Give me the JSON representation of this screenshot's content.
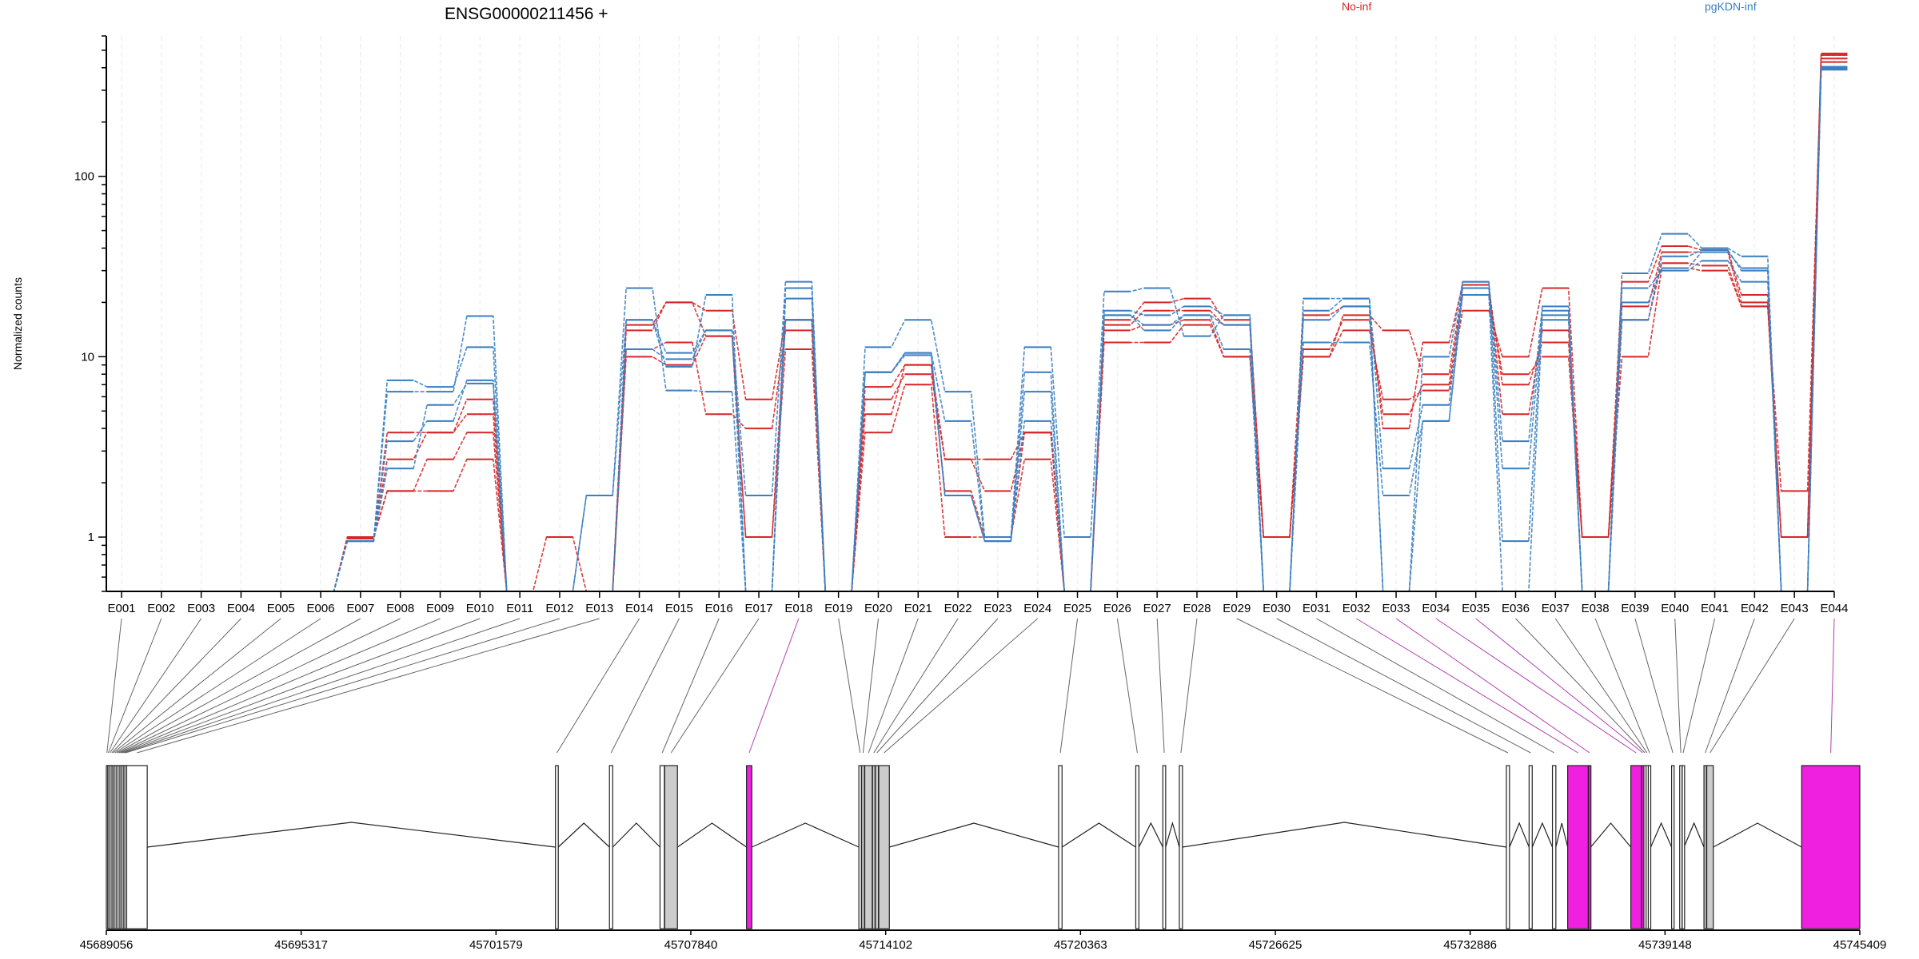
{
  "colors": {
    "No-inf": "#d62728",
    "pgKDN-inf": "#3a7fc1",
    "significant": "#f020e0",
    "grey_exon": "#cccccc",
    "axis": "#000000"
  },
  "header": {
    "title": "ENSG00000211456 +",
    "legend": [
      "No-inf",
      "pgKDN-inf"
    ]
  },
  "chart_data": [
    {
      "type": "line",
      "title": "ENSG00000211456 +",
      "xlabel": "",
      "ylabel": "Normalized counts",
      "yscale": "log",
      "ylim": [
        0.5,
        600
      ],
      "yticks": [
        1,
        10,
        100
      ],
      "ytick_labels": [
        "1",
        "10",
        "100"
      ],
      "grid": "vertical dashed per exon",
      "legend_placement": "top",
      "categories": [
        "E001",
        "E002",
        "E003",
        "E004",
        "E005",
        "E006",
        "E007",
        "E008",
        "E009",
        "E010",
        "E011",
        "E012",
        "E013",
        "E014",
        "E015",
        "E016",
        "E017",
        "E018",
        "E019",
        "E020",
        "E021",
        "E022",
        "E023",
        "E024",
        "E025",
        "E026",
        "E027",
        "E028",
        "E029",
        "E030",
        "E031",
        "E032",
        "E033",
        "E034",
        "E035",
        "E036",
        "E037",
        "E038",
        "E039",
        "E040",
        "E041",
        "E042",
        "E043",
        "E044"
      ],
      "series": [
        {
          "group": "No-inf",
          "values": [
            0.5,
            0.5,
            0.5,
            0.5,
            0.5,
            0.5,
            1.0,
            1.8,
            1.8,
            2.7,
            0.5,
            1.0,
            0.5,
            10,
            9,
            13,
            1.0,
            11,
            0.5,
            3.8,
            7,
            1.0,
            1.0,
            2.7,
            0.5,
            12,
            12,
            15,
            10,
            1.0,
            10,
            14,
            5.8,
            6.5,
            18,
            10,
            24,
            1.0,
            10,
            31,
            30,
            19,
            1.8,
            450
          ]
        },
        {
          "group": "No-inf",
          "values": [
            0.5,
            0.5,
            0.5,
            0.5,
            0.5,
            0.5,
            1.0,
            1.8,
            2.7,
            3.8,
            0.5,
            0.5,
            0.5,
            11,
            12,
            4.8,
            4.0,
            14,
            0.5,
            5.8,
            8,
            2.7,
            1.8,
            3.8,
            0.5,
            14,
            15,
            16,
            10,
            1.0,
            11,
            16,
            4.8,
            7,
            22,
            8,
            10,
            1.0,
            16,
            33,
            32,
            19,
            1.0,
            430
          ]
        },
        {
          "group": "No-inf",
          "values": [
            0.5,
            0.5,
            0.5,
            0.5,
            0.5,
            0.5,
            0.98,
            2.7,
            3.8,
            4.8,
            0.5,
            0.5,
            0.5,
            14,
            20,
            18,
            5.8,
            16,
            0.5,
            6.8,
            9,
            2.7,
            2.7,
            3.8,
            0.5,
            15,
            18,
            18,
            15,
            1.0,
            10,
            17,
            14,
            8,
            24,
            7,
            12,
            1.0,
            19,
            38,
            38,
            20,
            1.0,
            470
          ]
        },
        {
          "group": "No-inf",
          "values": [
            0.5,
            0.5,
            0.5,
            0.5,
            0.5,
            0.5,
            0.98,
            3.8,
            3.8,
            5.8,
            0.5,
            0.5,
            0.5,
            15,
            20,
            13,
            1.0,
            16,
            0.5,
            4.8,
            9,
            1.8,
            1.0,
            3.8,
            0.5,
            16,
            20,
            21,
            16,
            1.0,
            17,
            19,
            4.0,
            12,
            25,
            4.8,
            14,
            1.0,
            26,
            41,
            39,
            22,
            1.0,
            480
          ]
        },
        {
          "group": "pgKDN-inf",
          "values": [
            0.5,
            0.5,
            0.5,
            0.5,
            0.5,
            0.5,
            0.95,
            2.4,
            5.4,
            7.1,
            0.5,
            0.5,
            1.7,
            24,
            6.5,
            6.4,
            0.5,
            24,
            0.5,
            11.3,
            16,
            6.4,
            1.0,
            11.3,
            1.0,
            23,
            24,
            13,
            17,
            0.5,
            21,
            21,
            2.4,
            5.4,
            26,
            3.4,
            19,
            0.5,
            29,
            48,
            40,
            36,
            0.5,
            400
          ]
        },
        {
          "group": "pgKDN-inf",
          "values": [
            0.5,
            0.5,
            0.5,
            0.5,
            0.5,
            0.5,
            0.95,
            6.4,
            6.4,
            16.8,
            0.5,
            0.5,
            1.7,
            16,
            10.5,
            14,
            0.5,
            21,
            0.5,
            8.2,
            10.5,
            4.4,
            0.95,
            6.4,
            0.5,
            17,
            14,
            17,
            11,
            0.5,
            12,
            12,
            1.7,
            4.4,
            24,
            2.4,
            17,
            0.5,
            24,
            30,
            34,
            26,
            0.5,
            390
          ]
        },
        {
          "group": "pgKDN-inf",
          "values": [
            0.5,
            0.5,
            0.5,
            0.5,
            0.5,
            0.5,
            0.95,
            7.4,
            6.8,
            11.3,
            0.5,
            0.5,
            0.5,
            11,
            9.7,
            14,
            1.7,
            26,
            0.5,
            8.2,
            10.5,
            1.7,
            0.95,
            4.4,
            0.5,
            18,
            17,
            19,
            17,
            0.5,
            18,
            21,
            0.5,
            10,
            26,
            0.95,
            18,
            0.5,
            20,
            31,
            38,
            31,
            0.5,
            405
          ]
        },
        {
          "group": "pgKDN-inf",
          "values": [
            0.5,
            0.5,
            0.5,
            0.5,
            0.5,
            0.5,
            0.95,
            3.4,
            4.4,
            7.4,
            0.5,
            0.5,
            0.5,
            16,
            8.8,
            22,
            0.5,
            16,
            0.5,
            8.2,
            10.2,
            1.7,
            0.95,
            8.2,
            0.5,
            17,
            15,
            17,
            15,
            0.5,
            16,
            19,
            0.5,
            4.4,
            22,
            0.5,
            16,
            0.5,
            16,
            36,
            39,
            30,
            0.5,
            395
          ]
        }
      ]
    },
    {
      "type": "gene-model",
      "xlabel": "",
      "xtick_labels": [
        "45689056",
        "45695317",
        "45701579",
        "45707840",
        "45714102",
        "45720363",
        "45726625",
        "45732886",
        "45739148",
        "45745409"
      ],
      "xticks": [
        45689056,
        45695317,
        45701579,
        45707840,
        45714102,
        45720363,
        45726625,
        45732886,
        45739148,
        45745409
      ],
      "xlim": [
        45689056,
        45745409
      ],
      "exons": [
        {
          "id": "E001",
          "start": 45689056,
          "end": 45689095,
          "fill": "white"
        },
        {
          "id": "E002",
          "start": 45689100,
          "end": 45689140,
          "fill": "white"
        },
        {
          "id": "E003",
          "start": 45689145,
          "end": 45689200,
          "fill": "white"
        },
        {
          "id": "E004",
          "start": 45689210,
          "end": 45689250,
          "fill": "white"
        },
        {
          "id": "E005",
          "start": 45689260,
          "end": 45689300,
          "fill": "white"
        },
        {
          "id": "E006",
          "start": 45689310,
          "end": 45689360,
          "fill": "white"
        },
        {
          "id": "E007",
          "start": 45689370,
          "end": 45689420,
          "fill": "white"
        },
        {
          "id": "E008",
          "start": 45689430,
          "end": 45689480,
          "fill": "white"
        },
        {
          "id": "E009",
          "start": 45689490,
          "end": 45689530,
          "fill": "white"
        },
        {
          "id": "E010",
          "start": 45689540,
          "end": 45689590,
          "fill": "white"
        },
        {
          "id": "E011",
          "start": 45689600,
          "end": 45689640,
          "fill": "white"
        },
        {
          "id": "E012",
          "start": 45689650,
          "end": 45689700,
          "fill": "white"
        },
        {
          "id": "E013",
          "start": 45689710,
          "end": 45690370,
          "fill": "white"
        },
        {
          "id": "E014",
          "start": 45703490,
          "end": 45703580,
          "fill": "white"
        },
        {
          "id": "E015",
          "start": 45705225,
          "end": 45705330,
          "fill": "white"
        },
        {
          "id": "E016",
          "start": 45706850,
          "end": 45706990,
          "fill": "white"
        },
        {
          "id": "E017",
          "start": 45707000,
          "end": 45707410,
          "fill": "grey"
        },
        {
          "id": "E018",
          "start": 45709630,
          "end": 45709800,
          "fill": "magenta"
        },
        {
          "id": "E019",
          "start": 45713240,
          "end": 45713320,
          "fill": "white"
        },
        {
          "id": "E020",
          "start": 45713330,
          "end": 45713420,
          "fill": "grey"
        },
        {
          "id": "E021",
          "start": 45713430,
          "end": 45713670,
          "fill": "grey"
        },
        {
          "id": "E022",
          "start": 45713680,
          "end": 45713760,
          "fill": "grey"
        },
        {
          "id": "E023",
          "start": 45713770,
          "end": 45713870,
          "fill": "grey"
        },
        {
          "id": "E024",
          "start": 45713880,
          "end": 45714220,
          "fill": "grey"
        },
        {
          "id": "E025",
          "start": 45719660,
          "end": 45719770,
          "fill": "white"
        },
        {
          "id": "E026",
          "start": 45722140,
          "end": 45722240,
          "fill": "white"
        },
        {
          "id": "E027",
          "start": 45723010,
          "end": 45723100,
          "fill": "white"
        },
        {
          "id": "E028",
          "start": 45723540,
          "end": 45723640,
          "fill": "white"
        },
        {
          "id": "E029",
          "start": 45734050,
          "end": 45734150,
          "fill": "white"
        },
        {
          "id": "E030",
          "start": 45734780,
          "end": 45734880,
          "fill": "white"
        },
        {
          "id": "E031",
          "start": 45735530,
          "end": 45735640,
          "fill": "white"
        },
        {
          "id": "E032",
          "start": 45736020,
          "end": 45736680,
          "fill": "magenta"
        },
        {
          "id": "E033",
          "start": 45736690,
          "end": 45736760,
          "fill": "magenta"
        },
        {
          "id": "E034",
          "start": 45738050,
          "end": 45738390,
          "fill": "magenta"
        },
        {
          "id": "E035",
          "start": 45738400,
          "end": 45738460,
          "fill": "magenta"
        },
        {
          "id": "E036",
          "start": 45738470,
          "end": 45738530,
          "fill": "white"
        },
        {
          "id": "E037",
          "start": 45738540,
          "end": 45738600,
          "fill": "white"
        },
        {
          "id": "E038",
          "start": 45738610,
          "end": 45738690,
          "fill": "white"
        },
        {
          "id": "E039",
          "start": 45739360,
          "end": 45739440,
          "fill": "white"
        },
        {
          "id": "E040",
          "start": 45739620,
          "end": 45739690,
          "fill": "white"
        },
        {
          "id": "E041",
          "start": 45739700,
          "end": 45739760,
          "fill": "white"
        },
        {
          "id": "E042",
          "start": 45740400,
          "end": 45740480,
          "fill": "grey"
        },
        {
          "id": "E043",
          "start": 45740490,
          "end": 45740700,
          "fill": "grey"
        },
        {
          "id": "E044",
          "start": 45743540,
          "end": 45745409,
          "fill": "magenta"
        }
      ]
    }
  ]
}
